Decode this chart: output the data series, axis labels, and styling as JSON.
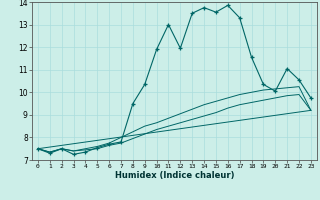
{
  "xlabel": "Humidex (Indice chaleur)",
  "background_color": "#cceee8",
  "grid_color": "#aadddd",
  "line_color": "#006666",
  "xlim": [
    -0.5,
    23.5
  ],
  "ylim": [
    7,
    14
  ],
  "xticks": [
    0,
    1,
    2,
    3,
    4,
    5,
    6,
    7,
    8,
    9,
    10,
    11,
    12,
    13,
    14,
    15,
    16,
    17,
    18,
    19,
    20,
    21,
    22,
    23
  ],
  "yticks": [
    7,
    8,
    9,
    10,
    11,
    12,
    13,
    14
  ],
  "main_x": [
    0,
    1,
    2,
    3,
    4,
    5,
    6,
    7,
    8,
    9,
    10,
    11,
    12,
    13,
    14,
    15,
    16,
    17,
    18,
    19,
    20,
    21,
    22,
    23
  ],
  "main_y": [
    7.5,
    7.3,
    7.5,
    7.25,
    7.35,
    7.55,
    7.7,
    7.8,
    9.5,
    10.35,
    11.9,
    13.0,
    11.95,
    13.5,
    13.75,
    13.55,
    13.85,
    13.3,
    11.55,
    10.35,
    10.05,
    11.05,
    10.55,
    9.75
  ],
  "line2_x": [
    0,
    1,
    2,
    3,
    4,
    5,
    6,
    7,
    8,
    9,
    10,
    11,
    12,
    13,
    14,
    15,
    16,
    17,
    18,
    19,
    20,
    21,
    22,
    23
  ],
  "line2_y": [
    7.5,
    7.35,
    7.5,
    7.4,
    7.5,
    7.6,
    7.75,
    8.0,
    8.25,
    8.5,
    8.65,
    8.85,
    9.05,
    9.25,
    9.45,
    9.6,
    9.75,
    9.9,
    10.0,
    10.1,
    10.15,
    10.2,
    10.25,
    9.2
  ],
  "line3_x": [
    0,
    1,
    2,
    3,
    4,
    5,
    6,
    7,
    8,
    9,
    10,
    11,
    12,
    13,
    14,
    15,
    16,
    17,
    18,
    19,
    20,
    21,
    22,
    23
  ],
  "line3_y": [
    7.5,
    7.35,
    7.5,
    7.4,
    7.45,
    7.5,
    7.65,
    7.75,
    7.95,
    8.15,
    8.35,
    8.5,
    8.65,
    8.8,
    8.95,
    9.1,
    9.3,
    9.45,
    9.55,
    9.65,
    9.75,
    9.85,
    9.9,
    9.2
  ],
  "line4_x": [
    0,
    23
  ],
  "line4_y": [
    7.5,
    9.2
  ],
  "figsize": [
    3.2,
    2.0
  ],
  "dpi": 100
}
